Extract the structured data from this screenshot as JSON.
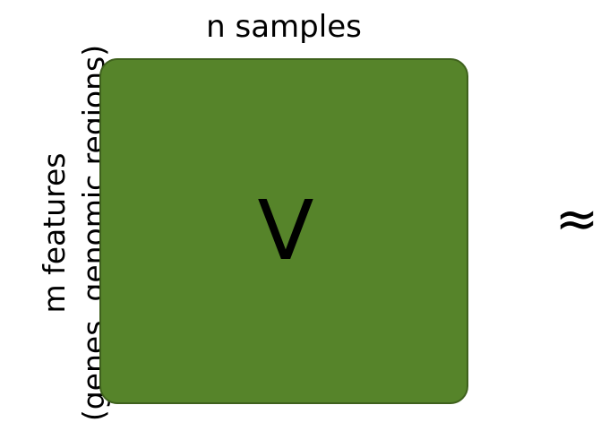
{
  "diagram": {
    "columns_label": "n samples",
    "rows_label_line1": "m features",
    "rows_label_line2": "(genes, genomic regions)",
    "matrix_symbol": "V",
    "relation_symbol": "≈",
    "matrix_color": "#56842a"
  }
}
